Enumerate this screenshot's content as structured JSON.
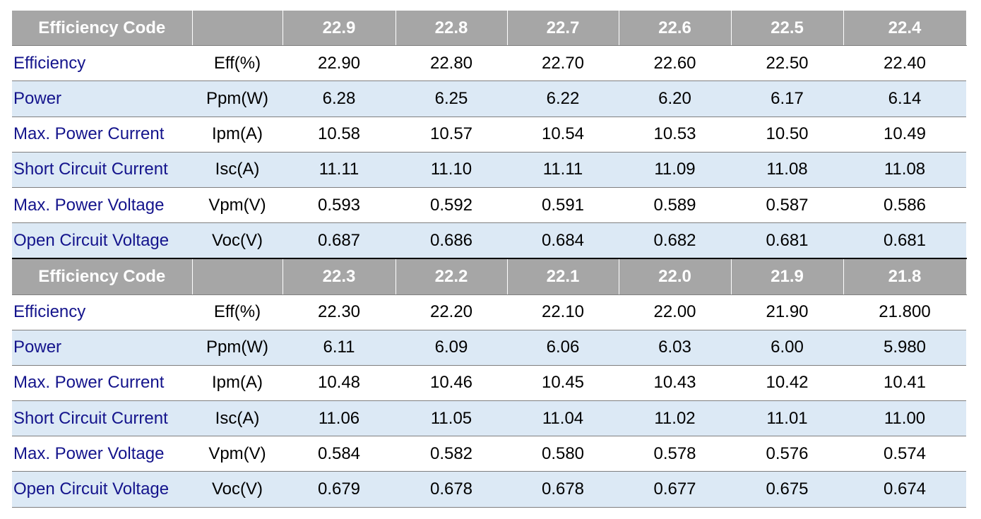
{
  "sections": [
    {
      "header": {
        "label": "Efficiency Code",
        "codes": [
          "22.9",
          "22.8",
          "22.7",
          "22.6",
          "22.5",
          "22.4"
        ]
      },
      "rows": [
        {
          "name": "Efficiency",
          "unit": "Eff(%)",
          "values": [
            "22.90",
            "22.80",
            "22.70",
            "22.60",
            "22.50",
            "22.40"
          ]
        },
        {
          "name": "Power",
          "unit": "Ppm(W)",
          "values": [
            "6.28",
            "6.25",
            "6.22",
            "6.20",
            "6.17",
            "6.14"
          ]
        },
        {
          "name": "Max. Power Current",
          "unit": "Ipm(A)",
          "values": [
            "10.58",
            "10.57",
            "10.54",
            "10.53",
            "10.50",
            "10.49"
          ]
        },
        {
          "name": "Short Circuit Current",
          "unit": "Isc(A)",
          "values": [
            "11.11",
            "11.10",
            "11.11",
            "11.09",
            "11.08",
            "11.08"
          ]
        },
        {
          "name": "Max. Power Voltage",
          "unit": "Vpm(V)",
          "values": [
            "0.593",
            "0.592",
            "0.591",
            "0.589",
            "0.587",
            "0.586"
          ]
        },
        {
          "name": "Open Circuit Voltage",
          "unit": "Voc(V)",
          "values": [
            "0.687",
            "0.686",
            "0.684",
            "0.682",
            "0.681",
            "0.681"
          ]
        }
      ]
    },
    {
      "header": {
        "label": "Efficiency Code",
        "codes": [
          "22.3",
          "22.2",
          "22.1",
          "22.0",
          "21.9",
          "21.8"
        ]
      },
      "rows": [
        {
          "name": "Efficiency",
          "unit": "Eff(%)",
          "values": [
            "22.30",
            "22.20",
            "22.10",
            "22.00",
            "21.90",
            "21.800"
          ]
        },
        {
          "name": "Power",
          "unit": "Ppm(W)",
          "values": [
            "6.11",
            "6.09",
            "6.06",
            "6.03",
            "6.00",
            "5.980"
          ]
        },
        {
          "name": "Max. Power Current",
          "unit": "Ipm(A)",
          "values": [
            "10.48",
            "10.46",
            "10.45",
            "10.43",
            "10.42",
            "10.41"
          ]
        },
        {
          "name": "Short Circuit Current",
          "unit": "Isc(A)",
          "values": [
            "11.06",
            "11.05",
            "11.04",
            "11.02",
            "11.01",
            "11.00"
          ]
        },
        {
          "name": "Max. Power Voltage",
          "unit": "Vpm(V)",
          "values": [
            "0.584",
            "0.582",
            "0.580",
            "0.578",
            "0.576",
            "0.574"
          ]
        },
        {
          "name": "Open Circuit Voltage",
          "unit": "Voc(V)",
          "values": [
            "0.679",
            "0.678",
            "0.678",
            "0.677",
            "0.675",
            "0.674"
          ]
        }
      ]
    }
  ]
}
